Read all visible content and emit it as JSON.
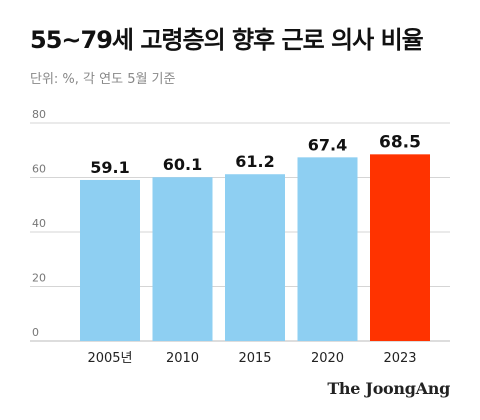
{
  "title": "55~79세 고령층의 향후 근로 의사 비율",
  "subtitle": "단위: %, 각 연도 5월 기준",
  "brand": "The JoongAng",
  "colors": {
    "bar": "#8ECFF2",
    "highlight": "#FF3300",
    "grid": "#D5D5D5",
    "axis_text": "#777777",
    "label": "#111111"
  },
  "chart_data": {
    "type": "bar",
    "categories": [
      "2005년",
      "2010",
      "2015",
      "2020",
      "2023"
    ],
    "values": [
      59.1,
      60.1,
      61.2,
      67.4,
      68.5
    ],
    "value_labels": [
      "59.1",
      "60.1",
      "61.2",
      "67.4",
      "68.5"
    ],
    "highlight_index": 4,
    "ylim": [
      0,
      80
    ],
    "yticks": [
      0,
      20,
      40,
      60,
      80
    ],
    "ytick_labels": [
      "0",
      "20",
      "40",
      "60",
      "80"
    ],
    "grid": true
  }
}
